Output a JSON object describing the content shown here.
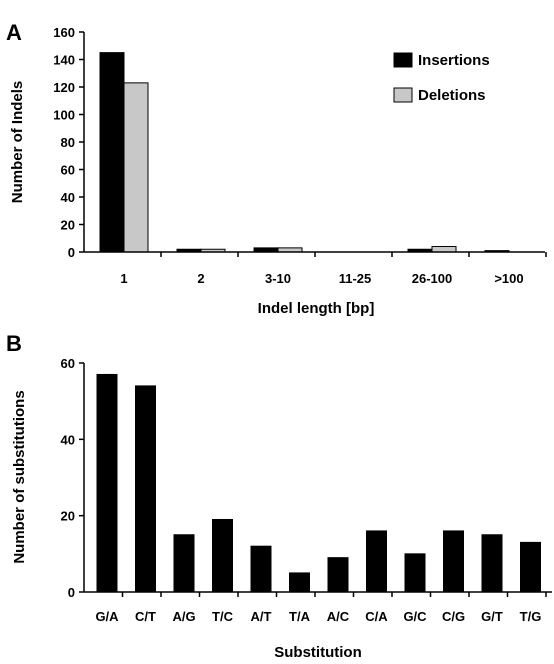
{
  "chart_data": [
    {
      "panel": "A",
      "type": "bar",
      "categories": [
        "1",
        "2",
        "3-10",
        "11-25",
        "26-100",
        ">100"
      ],
      "series": [
        {
          "name": "Insertions",
          "values": [
            145,
            2,
            3,
            0,
            2,
            1
          ],
          "color": "#000000"
        },
        {
          "name": "Deletions",
          "values": [
            123,
            2,
            3,
            0,
            4,
            0
          ],
          "color": "#c8c8c8"
        }
      ],
      "xlabel": "Indel length [bp]",
      "ylabel": "Number of Indels",
      "ylim": [
        0,
        160
      ],
      "yticks": [
        0,
        20,
        40,
        60,
        80,
        100,
        120,
        140,
        160
      ],
      "legend": "top-right",
      "grid": false
    },
    {
      "panel": "B",
      "type": "bar",
      "categories": [
        "G/A",
        "C/T",
        "A/G",
        "T/C",
        "A/T",
        "T/A",
        "A/C",
        "C/A",
        "G/C",
        "C/G",
        "G/T",
        "T/G"
      ],
      "series": [
        {
          "values": [
            57,
            54,
            15,
            19,
            12,
            5,
            9,
            16,
            10,
            16,
            15,
            13
          ],
          "color": "#000000"
        }
      ],
      "xlabel": "Substitution",
      "ylabel": "Number of substitutions",
      "ylim": [
        0,
        60
      ],
      "yticks": [
        0,
        20,
        40,
        60
      ],
      "grid": false
    }
  ]
}
